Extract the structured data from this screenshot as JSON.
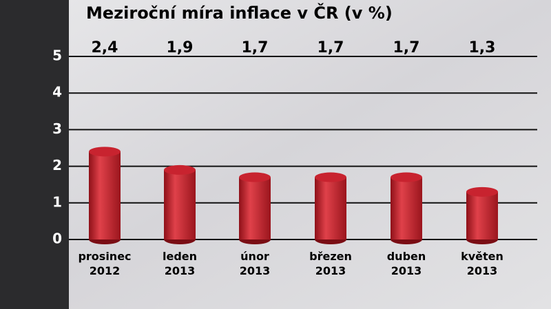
{
  "chart_data": {
    "type": "bar",
    "title": "Meziroční míra inflace v ČR (v %)",
    "categories": [
      "prosinec 2012",
      "leden 2013",
      "únor 2013",
      "březen 2013",
      "duben 2013",
      "květen 2013"
    ],
    "values": [
      2.4,
      1.9,
      1.7,
      1.7,
      1.7,
      1.3
    ],
    "value_labels": [
      "2,4",
      "1,9",
      "1,7",
      "1,7",
      "1,7",
      "1,3"
    ],
    "color": "#c8232f",
    "ylim": [
      0,
      5
    ],
    "yticks": [
      0,
      1,
      2,
      3,
      4,
      5
    ],
    "grid": true
  }
}
